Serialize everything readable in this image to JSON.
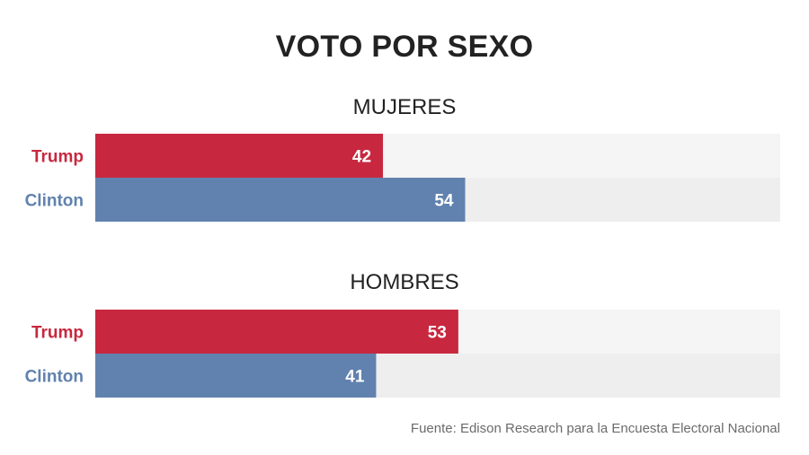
{
  "chart_data": {
    "type": "bar",
    "orientation": "horizontal",
    "title": "VOTO POR SEXO",
    "source": "Fuente: Edison Research para la Encuesta Electoral Nacional",
    "xlim": [
      0,
      100
    ],
    "grid": false,
    "panels": [
      {
        "title": "MUJERES",
        "categories": [
          "Trump",
          "Clinton"
        ],
        "values": [
          42,
          54
        ]
      },
      {
        "title": "HOMBRES",
        "categories": [
          "Trump",
          "Clinton"
        ],
        "values": [
          53,
          41
        ]
      }
    ],
    "colors": {
      "Trump": "#c8283f",
      "Clinton": "#6182ae",
      "track_light": "#f5f5f5",
      "track_dark": "#eeeeee"
    }
  }
}
